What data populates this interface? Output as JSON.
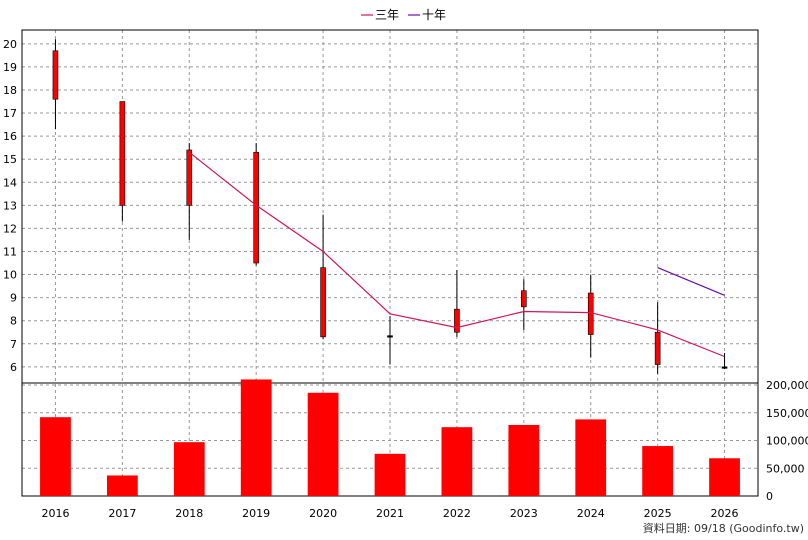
{
  "legend": {
    "ma3_label": "三年",
    "ma10_label": "十年"
  },
  "source_note": "資料日期: 09/18  (Goodinfo.tw)",
  "colors": {
    "up": "#ff0000",
    "down": "#00c800",
    "ma3": "#d4145a",
    "ma10": "#6a0dad",
    "volume": "#ff0000"
  },
  "chart_data": {
    "type": "candlestick",
    "categories": [
      "2016",
      "2017",
      "2018",
      "2019",
      "2020",
      "2021",
      "2022",
      "2023",
      "2024",
      "2025",
      "2026"
    ],
    "candles": [
      {
        "open": 17.6,
        "high": 20.2,
        "low": 16.3,
        "close": 19.7
      },
      {
        "open": 13.0,
        "high": 17.5,
        "low": 12.3,
        "close": 17.5
      },
      {
        "open": 13.0,
        "high": 15.7,
        "low": 11.5,
        "close": 15.4
      },
      {
        "open": 10.5,
        "high": 15.7,
        "low": 10.4,
        "close": 15.3
      },
      {
        "open": 7.3,
        "high": 12.6,
        "low": 7.2,
        "close": 10.3
      },
      {
        "open": 7.35,
        "high": 8.2,
        "low": 6.1,
        "close": 7.35
      },
      {
        "open": 7.5,
        "high": 10.2,
        "low": 7.3,
        "close": 8.5
      },
      {
        "open": 8.6,
        "high": 9.8,
        "low": 7.6,
        "close": 9.3
      },
      {
        "open": 7.4,
        "high": 10.0,
        "low": 6.4,
        "close": 9.2
      },
      {
        "open": 6.1,
        "high": 8.8,
        "low": 5.7,
        "close": 7.5
      },
      {
        "open": 6.0,
        "high": 6.6,
        "low": 5.9,
        "close": 6.0
      }
    ],
    "ma3": [
      null,
      null,
      15.3,
      13.0,
      11.0,
      8.3,
      7.7,
      8.4,
      8.35,
      7.6,
      6.45
    ],
    "ma10": [
      null,
      null,
      null,
      null,
      null,
      null,
      null,
      null,
      null,
      10.3,
      9.1
    ],
    "volume": [
      142000,
      37000,
      97000,
      210000,
      186000,
      76000,
      124000,
      128000,
      138000,
      90000,
      68000
    ],
    "price_ticks": [
      6,
      7,
      8,
      9,
      10,
      11,
      12,
      13,
      14,
      15,
      16,
      17,
      18,
      19,
      20
    ],
    "price_range": [
      5.3,
      20.6
    ],
    "volume_ticks": [
      {
        "v": 0,
        "label": "0"
      },
      {
        "v": 50000,
        "label": "50,000"
      },
      {
        "v": 100000,
        "label": "100,000"
      },
      {
        "v": 150000,
        "label": "150,000"
      },
      {
        "v": 200000,
        "label": "200,000"
      }
    ],
    "volume_range": [
      0,
      200000
    ]
  }
}
